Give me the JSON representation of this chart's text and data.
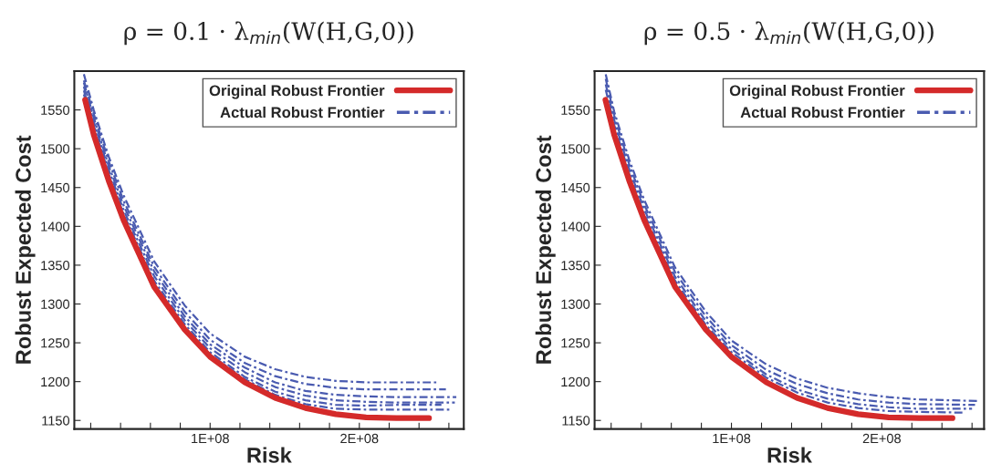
{
  "chart_data": [
    {
      "type": "line",
      "title": "ρ = 0.1 · λ$_{min}$(W(H,G,0))",
      "xlabel": "Risk",
      "ylabel": "Robust Expected Cost",
      "xlim": [
        9000000,
        270000000
      ],
      "ylim": [
        1139,
        1600
      ],
      "xticks": [
        {
          "value": 20000000,
          "label": null
        },
        {
          "value": 40000000,
          "label": null
        },
        {
          "value": 60000000,
          "label": null
        },
        {
          "value": 80000000,
          "label": null
        },
        {
          "value": 100000000,
          "label": "1E+08"
        },
        {
          "value": 120000000,
          "label": null
        },
        {
          "value": 140000000,
          "label": null
        },
        {
          "value": 160000000,
          "label": null
        },
        {
          "value": 180000000,
          "label": null
        },
        {
          "value": 200000000,
          "label": "2E+08"
        },
        {
          "value": 220000000,
          "label": null
        },
        {
          "value": 240000000,
          "label": null
        },
        {
          "value": 260000000,
          "label": null
        }
      ],
      "yticks": [
        1150,
        1200,
        1250,
        1300,
        1350,
        1400,
        1450,
        1500,
        1550
      ],
      "grid": false,
      "legend": "top right",
      "marker": "none",
      "series": [
        {
          "name": "Original Robust Frontier",
          "color": "#d42a2a",
          "line_style": "solid",
          "x": [
            16200000,
            22000000,
            32000000,
            42000000,
            62500000,
            83000000,
            100000000,
            123300000,
            143600000,
            163900000,
            184200000,
            204500000,
            224700000,
            246700000
          ],
          "values": [
            1563,
            1518,
            1459,
            1408,
            1322,
            1267,
            1232,
            1199,
            1179,
            1166,
            1158,
            1154,
            1153,
            1153
          ]
        },
        {
          "name": "Actual Robust Frontier",
          "color": "#4a5bb0",
          "line_style": "dashdot",
          "x": [
            15400000,
            22000000,
            32000000,
            42000000,
            62500000,
            83000000,
            100000000,
            123300000,
            143600000,
            163900000,
            184200000,
            204500000,
            224700000,
            252000000
          ],
          "values": [
            1596,
            1550,
            1490,
            1440,
            1355,
            1298,
            1262,
            1232,
            1216,
            1206,
            1201,
            1199,
            1199,
            1199
          ]
        },
        {
          "color": "#4a5bb0",
          "line_style": "dashdot",
          "x": [
            15400000,
            22000000,
            32000000,
            42000000,
            62500000,
            83000000,
            100000000,
            123300000,
            143600000,
            163900000,
            184200000,
            204500000,
            224700000,
            258000000
          ],
          "values": [
            1588,
            1545,
            1484,
            1433,
            1348,
            1290,
            1254,
            1224,
            1207,
            1197,
            1192,
            1190,
            1190,
            1190
          ]
        },
        {
          "color": "#4a5bb0",
          "line_style": "dashdot",
          "x": [
            15400000,
            22000000,
            32000000,
            42000000,
            62500000,
            83000000,
            100000000,
            123300000,
            143600000,
            163900000,
            184200000,
            204500000,
            224700000,
            265000000
          ],
          "values": [
            1585,
            1540,
            1478,
            1427,
            1342,
            1284,
            1248,
            1218,
            1199,
            1188,
            1183,
            1181,
            1180,
            1180
          ]
        },
        {
          "color": "#4a5bb0",
          "line_style": "dashdot",
          "x": [
            15400000,
            22000000,
            32000000,
            42000000,
            62500000,
            83000000,
            100000000,
            123300000,
            143600000,
            163900000,
            184200000,
            204500000,
            224700000,
            264000000
          ],
          "values": [
            1580,
            1535,
            1473,
            1421,
            1336,
            1279,
            1243,
            1212,
            1193,
            1182,
            1176,
            1174,
            1173,
            1173
          ]
        },
        {
          "color": "#4a5bb0",
          "line_style": "dashdot",
          "x": [
            15400000,
            22000000,
            32000000,
            42000000,
            62500000,
            83000000,
            100000000,
            123300000,
            143600000,
            163900000,
            184200000,
            204500000,
            224700000,
            255000000
          ],
          "values": [
            1575,
            1530,
            1468,
            1416,
            1330,
            1274,
            1238,
            1206,
            1187,
            1176,
            1170,
            1169,
            1170,
            1170
          ]
        },
        {
          "color": "#4a5bb0",
          "line_style": "dashdot",
          "x": [
            15400000,
            22000000,
            32000000,
            42000000,
            62500000,
            83000000,
            100000000,
            123300000,
            143600000,
            163900000,
            184200000,
            204500000,
            224700000,
            261000000
          ],
          "values": [
            1570,
            1525,
            1464,
            1412,
            1326,
            1270,
            1235,
            1203,
            1183,
            1171,
            1165,
            1164,
            1164,
            1164
          ]
        }
      ]
    },
    {
      "type": "line",
      "title": "ρ = 0.5 · λ$_{min}$(W(H,G,0))",
      "xlabel": "Risk",
      "ylabel": "Robust Expected Cost",
      "xlim": [
        9000000,
        268000000
      ],
      "ylim": [
        1139,
        1600
      ],
      "xticks": [
        {
          "value": 20000000,
          "label": null
        },
        {
          "value": 40000000,
          "label": null
        },
        {
          "value": 60000000,
          "label": null
        },
        {
          "value": 80000000,
          "label": null
        },
        {
          "value": 100000000,
          "label": "1E+08"
        },
        {
          "value": 120000000,
          "label": null
        },
        {
          "value": 140000000,
          "label": null
        },
        {
          "value": 160000000,
          "label": null
        },
        {
          "value": 180000000,
          "label": null
        },
        {
          "value": 200000000,
          "label": "2E+08"
        },
        {
          "value": 220000000,
          "label": null
        },
        {
          "value": 240000000,
          "label": null
        },
        {
          "value": 260000000,
          "label": null
        }
      ],
      "yticks": [
        1150,
        1200,
        1250,
        1300,
        1350,
        1400,
        1450,
        1500,
        1550
      ],
      "grid": false,
      "legend": "top right",
      "marker": "none",
      "series": [
        {
          "name": "Original Robust Frontier",
          "color": "#d42a2a",
          "line_style": "solid",
          "x": [
            16200000,
            22000000,
            32000000,
            42000000,
            62500000,
            83000000,
            100000000,
            123300000,
            143600000,
            163900000,
            184200000,
            204500000,
            224700000,
            247000000
          ],
          "values": [
            1563,
            1518,
            1459,
            1408,
            1322,
            1267,
            1232,
            1199,
            1179,
            1166,
            1158,
            1154,
            1153,
            1153
          ]
        },
        {
          "name": "Actual Robust Frontier",
          "color": "#4a5bb0",
          "line_style": "dashdot",
          "x": [
            16400000,
            22000000,
            32000000,
            42000000,
            62500000,
            83000000,
            100000000,
            123300000,
            143600000,
            163900000,
            184200000,
            204500000,
            224700000,
            265000000
          ],
          "values": [
            1596,
            1548,
            1486,
            1434,
            1347,
            1290,
            1253,
            1222,
            1204,
            1192,
            1185,
            1180,
            1177,
            1175
          ]
        },
        {
          "color": "#4a5bb0",
          "line_style": "dashdot",
          "x": [
            16400000,
            22000000,
            32000000,
            42000000,
            62500000,
            83000000,
            100000000,
            123300000,
            143600000,
            163900000,
            184200000,
            204500000,
            224700000,
            262000000
          ],
          "values": [
            1590,
            1543,
            1480,
            1428,
            1341,
            1284,
            1247,
            1215,
            1197,
            1185,
            1177,
            1173,
            1171,
            1170
          ]
        },
        {
          "color": "#4a5bb0",
          "line_style": "dashdot",
          "x": [
            16400000,
            22000000,
            32000000,
            42000000,
            62500000,
            83000000,
            100000000,
            123300000,
            143600000,
            163900000,
            184200000,
            204500000,
            224700000,
            260000000
          ],
          "values": [
            1583,
            1537,
            1474,
            1422,
            1335,
            1278,
            1242,
            1209,
            1190,
            1178,
            1171,
            1167,
            1165,
            1165
          ]
        },
        {
          "color": "#4a5bb0",
          "line_style": "dashdot",
          "x": [
            16400000,
            22000000,
            32000000,
            42000000,
            62500000,
            83000000,
            100000000,
            123300000,
            143600000,
            163900000,
            184200000,
            204500000,
            224700000,
            255000000
          ],
          "values": [
            1576,
            1531,
            1468,
            1416,
            1330,
            1273,
            1238,
            1205,
            1186,
            1173,
            1166,
            1162,
            1161,
            1160
          ]
        }
      ]
    }
  ]
}
